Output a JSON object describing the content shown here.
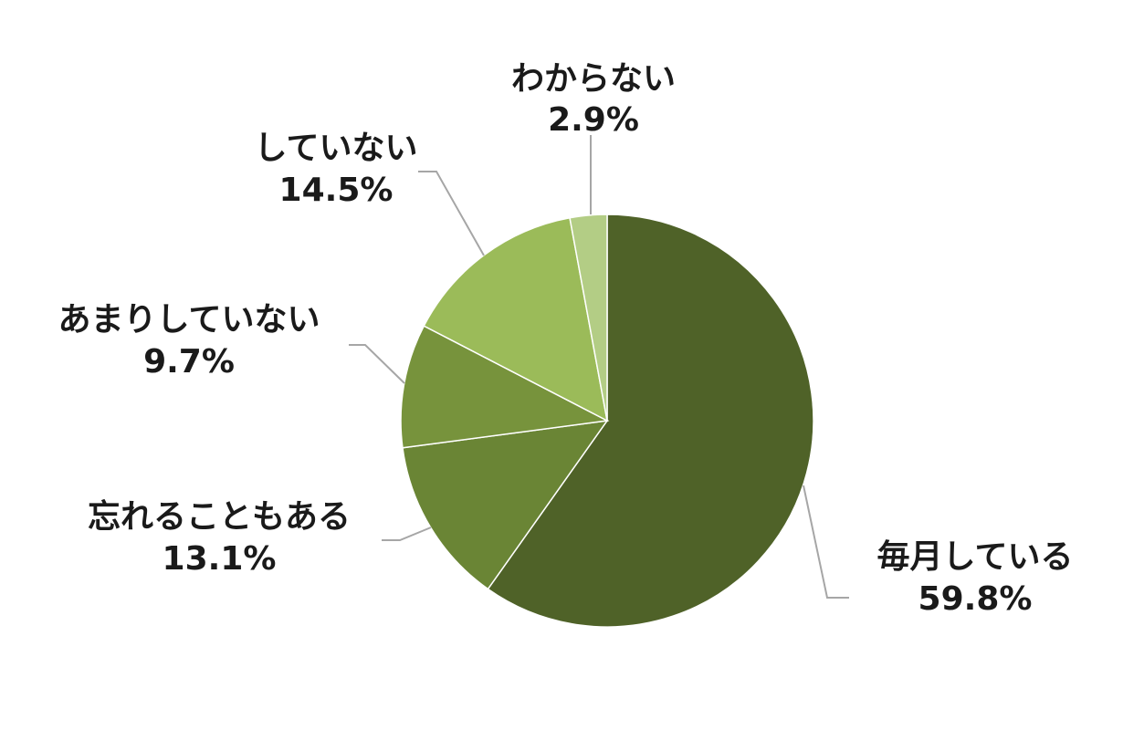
{
  "chart_data": {
    "type": "pie",
    "slices": [
      {
        "label": "毎月している",
        "value": 59.8,
        "value_label": "59.8%",
        "color": "#4f6228"
      },
      {
        "label": "忘れることもある",
        "value": 13.1,
        "value_label": "13.1%",
        "color": "#6a8535"
      },
      {
        "label": "あまりしていない",
        "value": 9.7,
        "value_label": "9.7%",
        "color": "#77933c"
      },
      {
        "label": "していない",
        "value": 14.5,
        "value_label": "14.5%",
        "color": "#9bbb59"
      },
      {
        "label": "わからない",
        "value": 2.9,
        "value_label": "2.9%",
        "color": "#b3cd85"
      }
    ],
    "start_angle_deg": 0,
    "direction": "clockwise",
    "legend": "none",
    "data_labels": "outside-with-leader-lines"
  }
}
